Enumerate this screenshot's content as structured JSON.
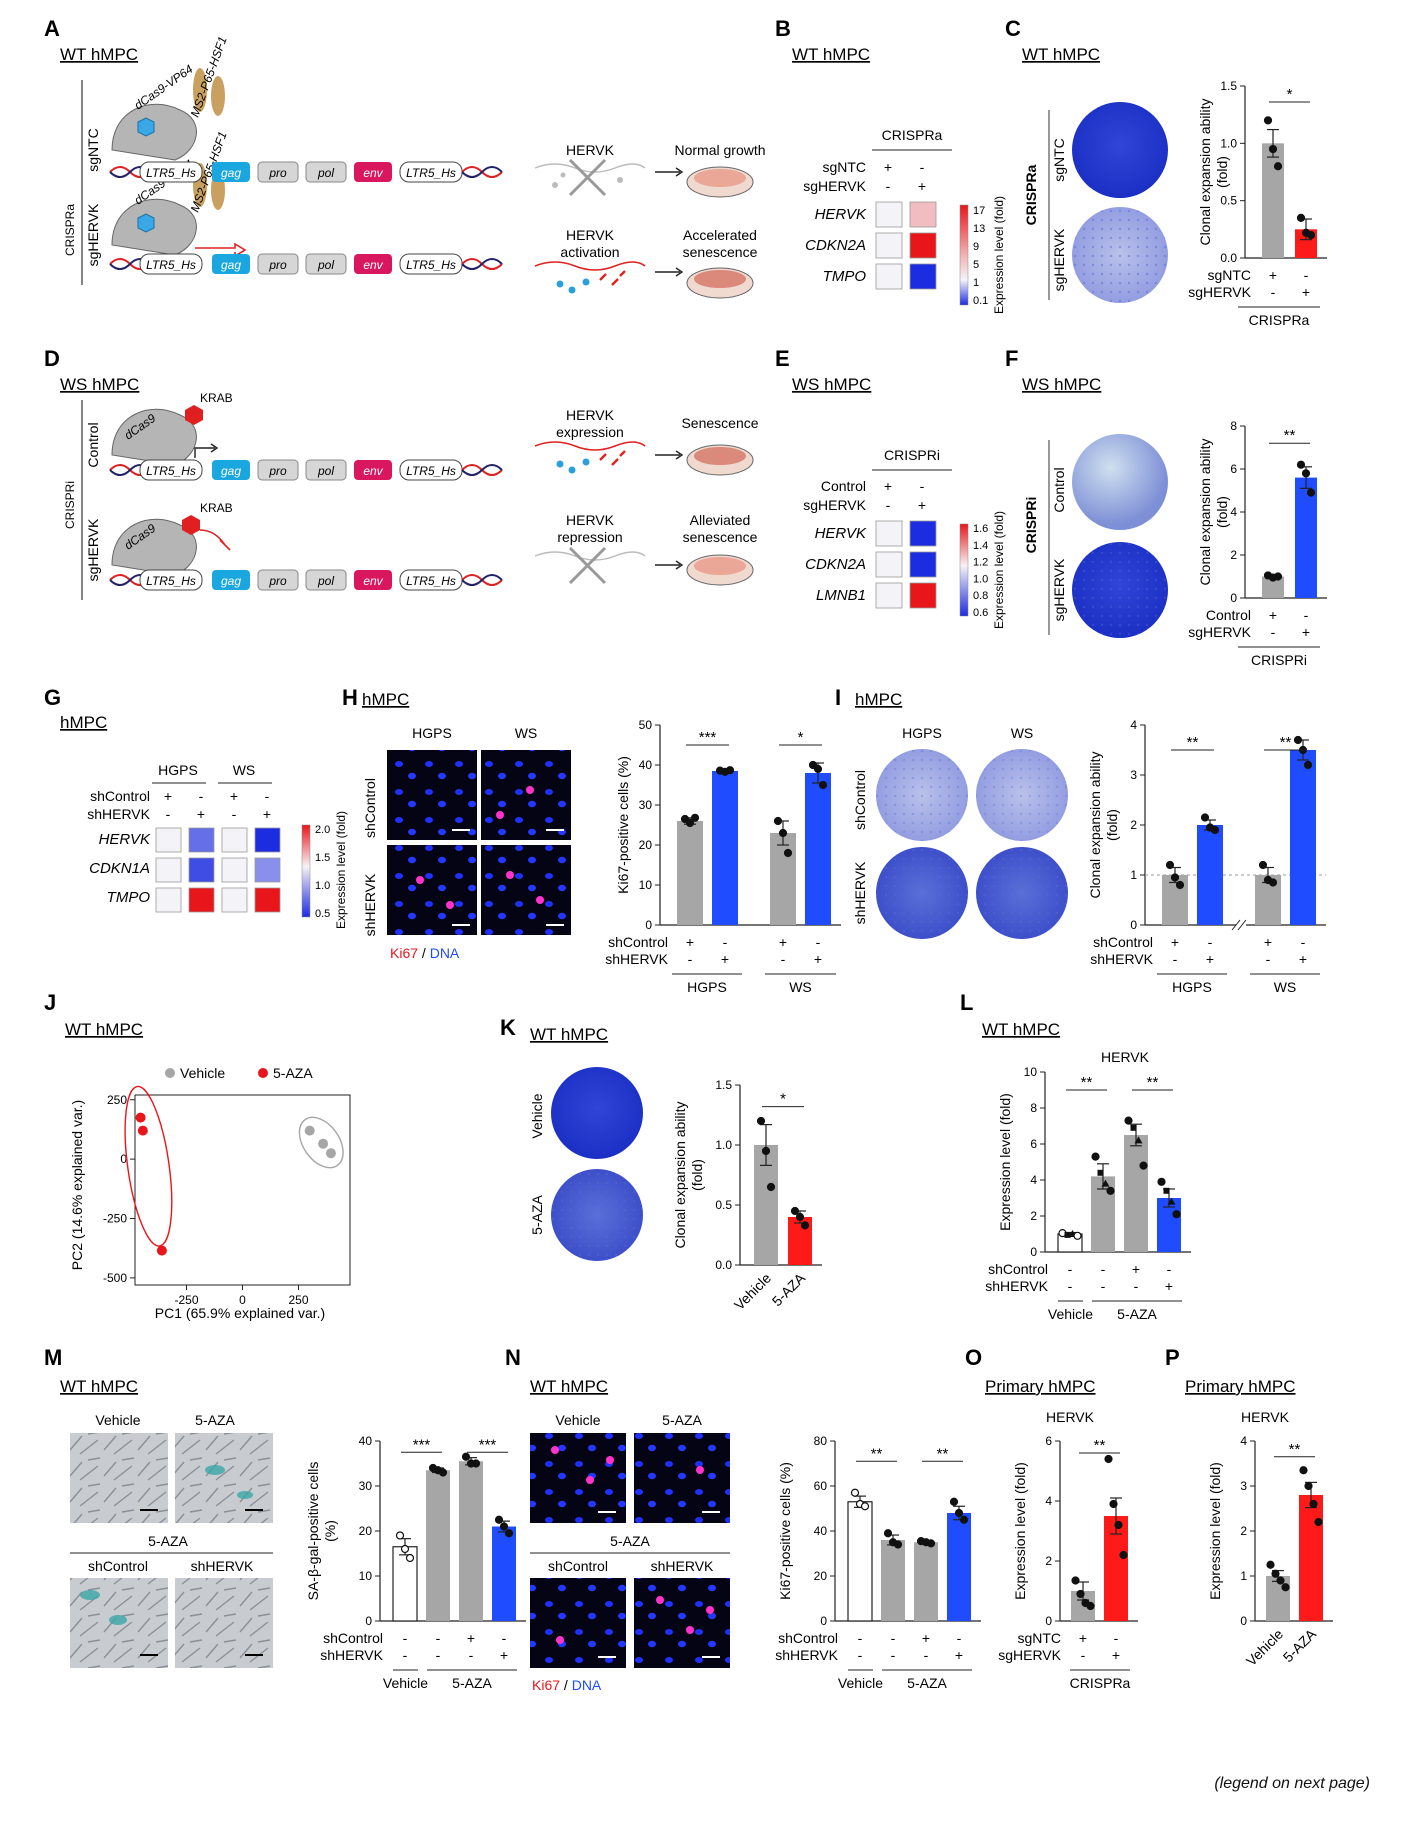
{
  "colors": {
    "gray": "#a6a6a6",
    "red": "#ff1a1a",
    "blue": "#1f4cff",
    "gag": "#1aa7e0",
    "env": "#d9175f",
    "dish": "#e89a8a"
  },
  "panels": {
    "A": {
      "letter": "A",
      "title": "WT hMPC",
      "side_label": "CRISPRa",
      "row1": "sgNTC",
      "row2": "sgHERVK",
      "dcas": "dCas9-VP64",
      "ms2": "MS2-P65-HSF1",
      "genes": [
        "LTR5_Hs",
        "gag",
        "pro",
        "pol",
        "env",
        "LTR5_Hs"
      ],
      "r1_mid": "HERVK",
      "r1_out": "Normal growth",
      "r2_mid": [
        "HERVK",
        "activation"
      ],
      "r2_out": [
        "Accelerated",
        "senescence"
      ]
    },
    "B": {
      "letter": "B",
      "title": "WT hMPC",
      "head": "CRISPRa",
      "rows": [
        "sgNTC",
        "sgHERVK"
      ],
      "signs": [
        [
          "+",
          "-"
        ],
        [
          "-",
          "+"
        ]
      ],
      "genes": [
        "HERVK",
        "CDKN2A",
        "TMPO"
      ],
      "scale_label": "Expression level (fold)",
      "ticks": [
        "17",
        "13",
        "9",
        "5",
        "1",
        "0.1"
      ]
    },
    "C": {
      "letter": "C",
      "title": "WT hMPC",
      "side": "CRISPRa",
      "rows": [
        "sgNTC",
        "sgHERVK"
      ],
      "ylabel": [
        "Clonal expansion ability",
        "(fold)"
      ],
      "yticks": [
        "0.0",
        "0.5",
        "1.0",
        "1.5"
      ],
      "sig": "*",
      "xrows": [
        "sgNTC",
        "sgHERVK"
      ],
      "signs": [
        [
          "+",
          "-"
        ],
        [
          "-",
          "+"
        ]
      ],
      "group": "CRISPRa"
    },
    "D": {
      "letter": "D",
      "title": "WS hMPC",
      "side_label": "CRISPRi",
      "row1": "Control",
      "row2": "sgHERVK",
      "dcas": "dCas9",
      "krab": "KRAB",
      "r1_mid": [
        "HERVK",
        "expression"
      ],
      "r1_out": "Senescence",
      "r2_mid": [
        "HERVK",
        "repression"
      ],
      "r2_out": [
        "Alleviated",
        "senescence"
      ]
    },
    "E": {
      "letter": "E",
      "title": "WS hMPC",
      "head": "CRISPRi",
      "rows": [
        "Control",
        "sgHERVK"
      ],
      "signs": [
        [
          "+",
          "-"
        ],
        [
          "-",
          "+"
        ]
      ],
      "genes": [
        "HERVK",
        "CDKN2A",
        "LMNB1"
      ],
      "scale_label": "Expression level (fold)",
      "ticks": [
        "1.6",
        "1.4",
        "1.2",
        "1.0",
        "0.8",
        "0.6"
      ]
    },
    "F": {
      "letter": "F",
      "title": "WS hMPC",
      "side": "CRISPRi",
      "rows": [
        "Control",
        "sgHERVK"
      ],
      "ylabel": [
        "Clonal expansion ability",
        "(fold)"
      ],
      "yticks": [
        "0",
        "2",
        "4",
        "6",
        "8"
      ],
      "sig": "**",
      "xrows": [
        "Control",
        "sgHERVK"
      ],
      "signs": [
        [
          "+",
          "-"
        ],
        [
          "-",
          "+"
        ]
      ],
      "group": "CRISPRi"
    },
    "G": {
      "letter": "G",
      "title": "hMPC",
      "groups": [
        "HGPS",
        "WS"
      ],
      "rows": [
        "shControl",
        "shHERVK"
      ],
      "signs": [
        [
          "+",
          "-",
          "+",
          "-"
        ],
        [
          "-",
          "+",
          "-",
          "+"
        ]
      ],
      "genes": [
        "HERVK",
        "CDKN1A",
        "TMPO"
      ],
      "scale_label": "Expression level (fold)",
      "ticks": [
        "2.0",
        "1.5",
        "1.0",
        "0.5"
      ]
    },
    "H": {
      "letter": "H",
      "title": "hMPC",
      "cols": [
        "HGPS",
        "WS"
      ],
      "rows": [
        "shControl",
        "shHERVK"
      ],
      "stain_a": "Ki67",
      "stain_sep": " / ",
      "stain_b": "DNA",
      "ylabel": "Ki67-positive cells (%)",
      "yticks": [
        "0",
        "10",
        "20",
        "30",
        "40",
        "50"
      ],
      "sigs": [
        "***",
        "*"
      ],
      "xrows": [
        "shControl",
        "shHERVK"
      ],
      "signs": [
        [
          "+",
          "-",
          "+",
          "-"
        ],
        [
          "-",
          "+",
          "-",
          "+"
        ]
      ],
      "groups": [
        "HGPS",
        "WS"
      ]
    },
    "I": {
      "letter": "I",
      "title": "hMPC",
      "cols": [
        "HGPS",
        "WS"
      ],
      "rows": [
        "shControl",
        "shHERVK"
      ],
      "ylabel": [
        "Clonal expansion ability",
        "(fold)"
      ],
      "yticks": [
        "0",
        "1",
        "2",
        "3",
        "4"
      ],
      "sigs": [
        "**",
        "**"
      ],
      "xrows": [
        "shControl",
        "shHERVK"
      ],
      "signs": [
        [
          "+",
          "-",
          "+",
          "-"
        ],
        [
          "-",
          "+",
          "-",
          "+"
        ]
      ],
      "groups": [
        "HGPS",
        "WS"
      ]
    },
    "J": {
      "letter": "J",
      "title": "WT hMPC",
      "legend": [
        "Vehicle",
        "5-AZA"
      ],
      "xlabel": "PC1 (65.9% explained var.)",
      "ylabel": "PC2 (14.6% explained var.)",
      "xticks": [
        "-250",
        "0",
        "250"
      ],
      "yticks": [
        "250",
        "0",
        "-250",
        "-500"
      ]
    },
    "K": {
      "letter": "K",
      "title": "WT hMPC",
      "rows": [
        "Vehicle",
        "5-AZA"
      ],
      "ylabel": [
        "Clonal expansion ability",
        "(fold)"
      ],
      "yticks": [
        "0.0",
        "0.5",
        "1.0",
        "1.5"
      ],
      "sig": "*",
      "cats": [
        "Vehicle",
        "5-AZA"
      ]
    },
    "L": {
      "letter": "L",
      "title": "WT hMPC",
      "head": "HERVK",
      "ylabel": "Expression level (fold)",
      "yticks": [
        "0",
        "2",
        "4",
        "6",
        "8",
        "10"
      ],
      "sigs": [
        "**",
        "**"
      ],
      "xrows": [
        "shControl",
        "shHERVK"
      ],
      "signs": [
        [
          "-",
          "-",
          "+",
          "-"
        ],
        [
          "-",
          "-",
          "-",
          "+"
        ]
      ],
      "groups": [
        "Vehicle",
        "5-AZA"
      ]
    },
    "M": {
      "letter": "M",
      "title": "WT hMPC",
      "img_labels": [
        "Vehicle",
        "5-AZA",
        "shControl",
        "shHERVK"
      ],
      "sub": "5-AZA",
      "ylabel": [
        "SA-β-gal-positive cells",
        "(%)"
      ],
      "yticks": [
        "0",
        "10",
        "20",
        "30",
        "40"
      ],
      "sigs": [
        "***",
        "***"
      ],
      "xrows": [
        "shControl",
        "shHERVK"
      ],
      "signs": [
        [
          "-",
          "-",
          "+",
          "-"
        ],
        [
          "-",
          "-",
          "-",
          "+"
        ]
      ],
      "groups": [
        "Vehicle",
        "5-AZA"
      ]
    },
    "N": {
      "letter": "N",
      "title": "WT hMPC",
      "img_labels": [
        "Vehicle",
        "5-AZA",
        "shControl",
        "shHERVK"
      ],
      "sub": "5-AZA",
      "stain_a": "Ki67",
      "stain_sep": " / ",
      "stain_b": "DNA",
      "ylabel": "Ki67-positive cells (%)",
      "yticks": [
        "0",
        "20",
        "40",
        "60",
        "80"
      ],
      "sigs": [
        "**",
        "**"
      ],
      "xrows": [
        "shControl",
        "shHERVK"
      ],
      "signs": [
        [
          "-",
          "-",
          "+",
          "-"
        ],
        [
          "-",
          "-",
          "-",
          "+"
        ]
      ],
      "groups": [
        "Vehicle",
        "5-AZA"
      ]
    },
    "O": {
      "letter": "O",
      "title": "Primary hMPC",
      "head": "HERVK",
      "ylabel": "Expression level (fold)",
      "yticks": [
        "0",
        "2",
        "4",
        "6"
      ],
      "sig": "**",
      "xrows": [
        "sgNTC",
        "sgHERVK"
      ],
      "signs": [
        [
          "+",
          "-"
        ],
        [
          "-",
          "+"
        ]
      ],
      "group": "CRISPRa"
    },
    "P": {
      "letter": "P",
      "title": "Primary hMPC",
      "head": "HERVK",
      "ylabel": "Expression level (fold)",
      "yticks": [
        "0",
        "1",
        "2",
        "3",
        "4"
      ],
      "sig": "**",
      "cats": [
        "Vehicle",
        "5-AZA"
      ]
    }
  },
  "footer": "(legend on next page)",
  "chart_data": [
    {
      "type": "heatmap",
      "panel": "B",
      "columns": [
        "sgNTC",
        "sgHERVK"
      ],
      "rows": [
        "HERVK",
        "CDKN2A",
        "TMPO"
      ],
      "values": [
        [
          1,
          5
        ],
        [
          1,
          17
        ],
        [
          1,
          0.1
        ]
      ],
      "range": [
        0.1,
        17
      ]
    },
    {
      "type": "bar",
      "panel": "C",
      "categories": [
        "sgNTC",
        "sgHERVK"
      ],
      "values": [
        1.0,
        0.25
      ],
      "errors": [
        0.12,
        0.09
      ],
      "points": [
        [
          1.2,
          0.95,
          0.8
        ],
        [
          0.35,
          0.22,
          0.2
        ]
      ],
      "ylim": [
        0,
        1.5
      ],
      "colors": [
        "gray",
        "red"
      ]
    },
    {
      "type": "heatmap",
      "panel": "E",
      "columns": [
        "Control",
        "sgHERVK"
      ],
      "rows": [
        "HERVK",
        "CDKN2A",
        "LMNB1"
      ],
      "values": [
        [
          1,
          0.6
        ],
        [
          1,
          0.6
        ],
        [
          1,
          1.6
        ]
      ],
      "range": [
        0.6,
        1.6
      ]
    },
    {
      "type": "bar",
      "panel": "F",
      "categories": [
        "Control",
        "sgHERVK"
      ],
      "values": [
        1.0,
        5.6
      ],
      "errors": [
        0.08,
        0.5
      ],
      "points": [
        [
          1.05,
          0.95,
          1.0
        ],
        [
          6.2,
          5.8,
          4.9
        ]
      ],
      "ylim": [
        0,
        8
      ],
      "colors": [
        "gray",
        "blue"
      ]
    },
    {
      "type": "heatmap",
      "panel": "G",
      "columns": [
        "HGPS shControl",
        "HGPS shHERVK",
        "WS shControl",
        "WS shHERVK"
      ],
      "rows": [
        "HERVK",
        "CDKN1A",
        "TMPO"
      ],
      "values": [
        [
          1,
          0.6,
          1,
          0.4
        ],
        [
          1,
          0.5,
          1,
          0.7
        ],
        [
          1,
          2.2,
          1,
          2.2
        ]
      ],
      "range": [
        0.4,
        2.2
      ]
    },
    {
      "type": "bar",
      "panel": "H",
      "categories": [
        "HGPS shControl",
        "HGPS shHERVK",
        "WS shControl",
        "WS shHERVK"
      ],
      "values": [
        26,
        38.5,
        23,
        38
      ],
      "errors": [
        0.8,
        0.4,
        3,
        2.5
      ],
      "points": [
        [
          26.5,
          25.5,
          26.8
        ],
        [
          38.6,
          38.3,
          38.7
        ],
        [
          26,
          23,
          18
        ],
        [
          40,
          39,
          35
        ]
      ],
      "ylim": [
        0,
        50
      ],
      "colors": [
        "gray",
        "blue",
        "gray",
        "blue"
      ]
    },
    {
      "type": "bar",
      "panel": "I",
      "categories": [
        "HGPS shControl",
        "HGPS shHERVK",
        "WS shControl",
        "WS shHERVK"
      ],
      "values": [
        1.0,
        2.0,
        1.0,
        3.5
      ],
      "errors": [
        0.15,
        0.1,
        0.15,
        0.2
      ],
      "points": [
        [
          1.2,
          0.95,
          0.8
        ],
        [
          2.15,
          1.95,
          1.9
        ],
        [
          1.2,
          0.9,
          0.85
        ],
        [
          3.7,
          3.5,
          3.2
        ]
      ],
      "ylim": [
        0,
        4
      ],
      "colors": [
        "gray",
        "blue",
        "gray",
        "blue"
      ]
    },
    {
      "type": "scatter",
      "panel": "J",
      "series": [
        {
          "name": "Vehicle",
          "x": [
            300,
            360,
            395
          ],
          "y": [
            120,
            65,
            25
          ]
        },
        {
          "name": "5-AZA",
          "x": [
            -455,
            -445,
            -360
          ],
          "y": [
            175,
            120,
            -385
          ]
        }
      ],
      "xlim": [
        -480,
        480
      ],
      "ylim": [
        -530,
        270
      ]
    },
    {
      "type": "bar",
      "panel": "K",
      "categories": [
        "Vehicle",
        "5-AZA"
      ],
      "values": [
        1.0,
        0.4
      ],
      "errors": [
        0.17,
        0.05
      ],
      "points": [
        [
          1.2,
          0.95,
          0.65
        ],
        [
          0.45,
          0.4,
          0.33
        ]
      ],
      "ylim": [
        0,
        1.5
      ],
      "colors": [
        "gray",
        "red"
      ]
    },
    {
      "type": "bar",
      "panel": "L",
      "categories": [
        "Vehicle",
        "5-AZA",
        "5-AZA shControl",
        "5-AZA shHERVK"
      ],
      "values": [
        1.0,
        4.2,
        6.5,
        3.0
      ],
      "errors": [
        0.08,
        0.7,
        0.6,
        0.5
      ],
      "points": [
        [
          1.05,
          0.95,
          1.0,
          0.9
        ],
        [
          5.3,
          4.4,
          3.8,
          3.4
        ],
        [
          7.3,
          6.9,
          6.2,
          4.8
        ],
        [
          3.9,
          3.4,
          2.8,
          2.1
        ]
      ],
      "ylim": [
        0,
        10
      ],
      "colors": [
        "white",
        "gray",
        "gray",
        "blue"
      ]
    },
    {
      "type": "bar",
      "panel": "M",
      "categories": [
        "Vehicle",
        "5-AZA",
        "5-AZA shControl",
        "5-AZA shHERVK"
      ],
      "values": [
        16.5,
        33.5,
        35.5,
        21
      ],
      "errors": [
        1.8,
        0.5,
        0.8,
        1.2
      ],
      "points": [
        [
          19,
          16,
          14
        ],
        [
          34,
          33.5,
          33
        ],
        [
          36.5,
          35,
          35
        ],
        [
          22.5,
          21,
          19.5
        ]
      ],
      "ylim": [
        0,
        40
      ],
      "colors": [
        "white",
        "gray",
        "gray",
        "blue"
      ]
    },
    {
      "type": "bar",
      "panel": "N",
      "categories": [
        "Vehicle",
        "5-AZA",
        "5-AZA shControl",
        "5-AZA shHERVK"
      ],
      "values": [
        53,
        36,
        35,
        48
      ],
      "errors": [
        2.5,
        2.2,
        0.6,
        3
      ],
      "points": [
        [
          57,
          52,
          51
        ],
        [
          39,
          35,
          34
        ],
        [
          35.5,
          35,
          34.5
        ],
        [
          53,
          48,
          45
        ]
      ],
      "ylim": [
        0,
        80
      ],
      "colors": [
        "white",
        "gray",
        "gray",
        "blue"
      ]
    },
    {
      "type": "bar",
      "panel": "O",
      "categories": [
        "sgNTC",
        "sgHERVK"
      ],
      "values": [
        1.0,
        3.5
      ],
      "errors": [
        0.3,
        0.6
      ],
      "points": [
        [
          1.35,
          0.9,
          0.6,
          0.5
        ],
        [
          5.4,
          3.9,
          3.2,
          2.2
        ]
      ],
      "ylim": [
        0,
        6
      ],
      "colors": [
        "gray",
        "red"
      ]
    },
    {
      "type": "bar",
      "panel": "P",
      "categories": [
        "Vehicle",
        "5-AZA"
      ],
      "values": [
        1.0,
        2.8
      ],
      "errors": [
        0.12,
        0.28
      ],
      "points": [
        [
          1.25,
          1.05,
          0.9,
          0.75
        ],
        [
          3.35,
          3.0,
          2.6,
          2.2
        ]
      ],
      "ylim": [
        0,
        4
      ],
      "colors": [
        "gray",
        "red"
      ]
    }
  ]
}
